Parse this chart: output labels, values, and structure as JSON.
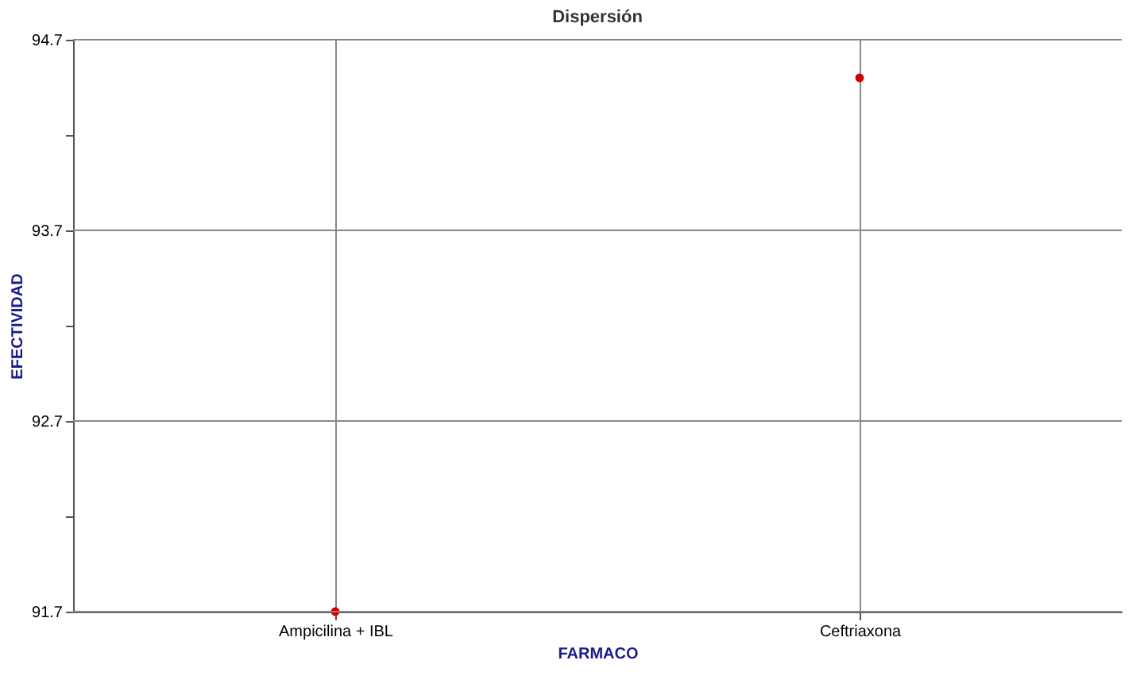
{
  "chart_data": {
    "type": "scatter",
    "title": "Dispersión",
    "xlabel": "FARMACO",
    "ylabel": "EFECTIVIDAD",
    "categories": [
      "Ampicilina + IBL",
      "Ceftriaxona"
    ],
    "series": [
      {
        "color": "#cc0000",
        "values": [
          91.7,
          94.5
        ]
      }
    ],
    "ylim": [
      91.7,
      94.7
    ],
    "yticks": [
      91.7,
      {
        "value": 92.2,
        "label": null
      },
      92.7,
      {
        "value": 93.2,
        "label": null
      },
      93.7,
      {
        "value": 94.2,
        "label": null
      },
      94.7
    ],
    "grid": true,
    "marker": "circle"
  }
}
